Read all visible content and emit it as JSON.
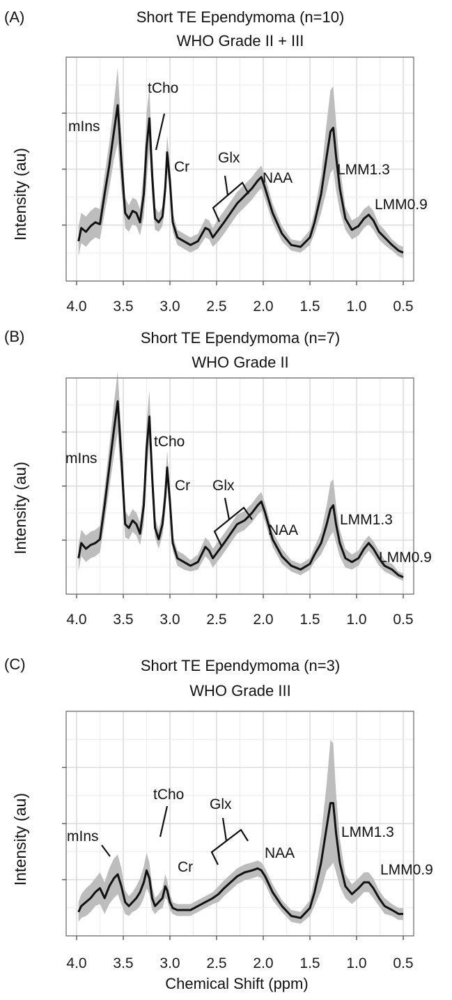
{
  "figure": {
    "xlabel": "Chemical Shift (ppm)"
  },
  "chart_data": [
    {
      "type": "line",
      "panel_label": "(A)",
      "title": "Short TE Ependymoma (n=10)",
      "subtitle": "WHO Grade II + III",
      "xlabel": "",
      "ylabel": "Intensity (au)",
      "xlim": [
        4.0,
        0.5
      ],
      "x_reversed": true,
      "ylim": [
        0,
        1
      ],
      "grid": true,
      "x_ticks": [
        "4.0",
        "3.5",
        "3.0",
        "2.5",
        "2.0",
        "1.5",
        "1.0",
        "0.5"
      ],
      "series": [
        {
          "x": [
            3.98,
            3.95,
            3.9,
            3.85,
            3.8,
            3.75,
            3.7,
            3.65,
            3.6,
            3.56,
            3.52,
            3.48,
            3.44,
            3.4,
            3.36,
            3.32,
            3.28,
            3.25,
            3.22,
            3.19,
            3.16,
            3.12,
            3.08,
            3.05,
            3.03,
            3.0,
            2.97,
            2.92,
            2.85,
            2.78,
            2.7,
            2.62,
            2.58,
            2.54,
            2.48,
            2.42,
            2.35,
            2.28,
            2.2,
            2.12,
            2.06,
            2.02,
            1.98,
            1.9,
            1.8,
            1.7,
            1.6,
            1.5,
            1.45,
            1.38,
            1.32,
            1.28,
            1.25,
            1.22,
            1.18,
            1.12,
            1.05,
            0.98,
            0.92,
            0.87,
            0.82,
            0.76,
            0.7,
            0.62,
            0.55,
            0.5
          ],
          "y": [
            0.1,
            0.17,
            0.15,
            0.18,
            0.2,
            0.19,
            0.35,
            0.5,
            0.68,
            0.82,
            0.52,
            0.25,
            0.22,
            0.26,
            0.25,
            0.2,
            0.35,
            0.6,
            0.75,
            0.45,
            0.22,
            0.2,
            0.23,
            0.38,
            0.57,
            0.42,
            0.2,
            0.12,
            0.1,
            0.08,
            0.1,
            0.17,
            0.16,
            0.12,
            0.16,
            0.2,
            0.25,
            0.3,
            0.34,
            0.38,
            0.42,
            0.44,
            0.38,
            0.25,
            0.14,
            0.08,
            0.07,
            0.12,
            0.2,
            0.35,
            0.55,
            0.68,
            0.7,
            0.55,
            0.38,
            0.22,
            0.16,
            0.18,
            0.22,
            0.24,
            0.21,
            0.15,
            0.12,
            0.08,
            0.05,
            0.04
          ],
          "sd": [
            0.08,
            0.08,
            0.08,
            0.08,
            0.08,
            0.08,
            0.1,
            0.12,
            0.15,
            0.2,
            0.15,
            0.08,
            0.07,
            0.07,
            0.07,
            0.07,
            0.12,
            0.18,
            0.16,
            0.12,
            0.06,
            0.05,
            0.05,
            0.08,
            0.09,
            0.08,
            0.05,
            0.04,
            0.04,
            0.04,
            0.04,
            0.05,
            0.05,
            0.05,
            0.06,
            0.06,
            0.06,
            0.06,
            0.06,
            0.06,
            0.06,
            0.06,
            0.06,
            0.05,
            0.04,
            0.03,
            0.03,
            0.04,
            0.06,
            0.1,
            0.18,
            0.22,
            0.22,
            0.18,
            0.12,
            0.06,
            0.05,
            0.05,
            0.05,
            0.05,
            0.05,
            0.04,
            0.04,
            0.03,
            0.03,
            0.03
          ]
        }
      ],
      "annotations": [
        {
          "text": "mIns"
        },
        {
          "text": "tCho"
        },
        {
          "text": "Cr"
        },
        {
          "text": "Glx"
        },
        {
          "text": "NAA"
        },
        {
          "text": "LMM1.3"
        },
        {
          "text": "LMM0.9"
        }
      ]
    },
    {
      "type": "line",
      "panel_label": "(B)",
      "title": "Short TE Ependymoma (n=7)",
      "subtitle": "WHO Grade II",
      "xlabel": "",
      "ylabel": "Intensity (au)",
      "xlim": [
        4.0,
        0.5
      ],
      "x_reversed": true,
      "ylim": [
        0,
        1
      ],
      "grid": true,
      "x_ticks": [
        "4.0",
        "3.5",
        "3.0",
        "2.5",
        "2.0",
        "1.5",
        "1.0",
        "0.5"
      ],
      "series": [
        {
          "x": [
            3.98,
            3.95,
            3.9,
            3.85,
            3.8,
            3.75,
            3.7,
            3.65,
            3.6,
            3.56,
            3.52,
            3.48,
            3.44,
            3.4,
            3.36,
            3.32,
            3.28,
            3.25,
            3.22,
            3.19,
            3.16,
            3.12,
            3.08,
            3.05,
            3.03,
            3.0,
            2.97,
            2.92,
            2.85,
            2.78,
            2.7,
            2.62,
            2.58,
            2.54,
            2.48,
            2.42,
            2.35,
            2.28,
            2.2,
            2.12,
            2.06,
            2.02,
            1.98,
            1.9,
            1.8,
            1.7,
            1.6,
            1.5,
            1.45,
            1.38,
            1.32,
            1.28,
            1.25,
            1.22,
            1.18,
            1.12,
            1.05,
            0.98,
            0.92,
            0.87,
            0.82,
            0.76,
            0.7,
            0.62,
            0.55,
            0.5
          ],
          "y": [
            0.12,
            0.2,
            0.17,
            0.19,
            0.2,
            0.22,
            0.4,
            0.6,
            0.8,
            0.95,
            0.65,
            0.3,
            0.28,
            0.32,
            0.3,
            0.25,
            0.4,
            0.7,
            0.87,
            0.55,
            0.28,
            0.22,
            0.3,
            0.45,
            0.6,
            0.42,
            0.2,
            0.12,
            0.1,
            0.08,
            0.1,
            0.18,
            0.16,
            0.12,
            0.16,
            0.2,
            0.25,
            0.3,
            0.32,
            0.36,
            0.4,
            0.42,
            0.36,
            0.22,
            0.13,
            0.08,
            0.06,
            0.09,
            0.14,
            0.2,
            0.3,
            0.38,
            0.4,
            0.3,
            0.2,
            0.12,
            0.1,
            0.12,
            0.17,
            0.2,
            0.17,
            0.12,
            0.08,
            0.06,
            0.03,
            0.02
          ],
          "sd": [
            0.07,
            0.07,
            0.07,
            0.07,
            0.07,
            0.07,
            0.09,
            0.11,
            0.14,
            0.16,
            0.13,
            0.07,
            0.06,
            0.06,
            0.06,
            0.06,
            0.1,
            0.14,
            0.14,
            0.1,
            0.05,
            0.05,
            0.06,
            0.08,
            0.09,
            0.07,
            0.04,
            0.04,
            0.04,
            0.03,
            0.04,
            0.05,
            0.05,
            0.05,
            0.05,
            0.05,
            0.05,
            0.05,
            0.05,
            0.05,
            0.05,
            0.05,
            0.05,
            0.04,
            0.04,
            0.03,
            0.03,
            0.03,
            0.04,
            0.06,
            0.1,
            0.14,
            0.14,
            0.1,
            0.07,
            0.05,
            0.04,
            0.04,
            0.04,
            0.04,
            0.04,
            0.04,
            0.03,
            0.03,
            0.02,
            0.02
          ]
        }
      ],
      "annotations": [
        {
          "text": "mIns"
        },
        {
          "text": "tCho"
        },
        {
          "text": "Cr"
        },
        {
          "text": "Glx"
        },
        {
          "text": "NAA"
        },
        {
          "text": "LMM1.3"
        },
        {
          "text": "LMM0.9"
        }
      ]
    },
    {
      "type": "line",
      "panel_label": "(C)",
      "title": "Short TE Ependymoma (n=3)",
      "subtitle": "WHO Grade III",
      "xlabel": "Chemical Shift (ppm)",
      "ylabel": "Intensity (au)",
      "xlim": [
        4.0,
        0.5
      ],
      "x_reversed": true,
      "ylim": [
        0,
        1
      ],
      "grid": true,
      "x_ticks": [
        "4.0",
        "3.5",
        "3.0",
        "2.5",
        "2.0",
        "1.5",
        "1.0",
        "0.5"
      ],
      "series": [
        {
          "x": [
            3.98,
            3.95,
            3.9,
            3.85,
            3.8,
            3.75,
            3.7,
            3.65,
            3.6,
            3.56,
            3.52,
            3.48,
            3.44,
            3.4,
            3.36,
            3.32,
            3.28,
            3.25,
            3.22,
            3.19,
            3.16,
            3.12,
            3.08,
            3.05,
            3.03,
            3.0,
            2.97,
            2.92,
            2.85,
            2.78,
            2.7,
            2.62,
            2.58,
            2.54,
            2.48,
            2.42,
            2.35,
            2.28,
            2.2,
            2.12,
            2.06,
            2.02,
            1.98,
            1.9,
            1.8,
            1.7,
            1.6,
            1.5,
            1.45,
            1.38,
            1.32,
            1.28,
            1.25,
            1.22,
            1.18,
            1.12,
            1.05,
            0.98,
            0.92,
            0.87,
            0.82,
            0.76,
            0.7,
            0.62,
            0.55,
            0.5
          ],
          "y": [
            0.05,
            0.08,
            0.1,
            0.12,
            0.15,
            0.17,
            0.12,
            0.18,
            0.22,
            0.24,
            0.18,
            0.1,
            0.08,
            0.1,
            0.12,
            0.15,
            0.2,
            0.26,
            0.22,
            0.12,
            0.08,
            0.1,
            0.12,
            0.18,
            0.16,
            0.1,
            0.07,
            0.06,
            0.06,
            0.06,
            0.08,
            0.1,
            0.11,
            0.12,
            0.14,
            0.17,
            0.2,
            0.23,
            0.25,
            0.26,
            0.27,
            0.26,
            0.23,
            0.15,
            0.08,
            0.03,
            0.02,
            0.07,
            0.15,
            0.3,
            0.48,
            0.6,
            0.6,
            0.45,
            0.3,
            0.18,
            0.14,
            0.17,
            0.2,
            0.2,
            0.17,
            0.12,
            0.08,
            0.06,
            0.04,
            0.04
          ],
          "sd": [
            0.05,
            0.06,
            0.07,
            0.07,
            0.07,
            0.08,
            0.08,
            0.09,
            0.1,
            0.1,
            0.09,
            0.06,
            0.05,
            0.05,
            0.06,
            0.07,
            0.08,
            0.09,
            0.08,
            0.06,
            0.04,
            0.04,
            0.05,
            0.06,
            0.05,
            0.04,
            0.03,
            0.03,
            0.03,
            0.03,
            0.03,
            0.03,
            0.03,
            0.03,
            0.04,
            0.04,
            0.04,
            0.04,
            0.04,
            0.04,
            0.04,
            0.04,
            0.04,
            0.04,
            0.03,
            0.03,
            0.03,
            0.04,
            0.07,
            0.14,
            0.22,
            0.32,
            0.3,
            0.2,
            0.12,
            0.06,
            0.05,
            0.05,
            0.05,
            0.05,
            0.05,
            0.04,
            0.04,
            0.03,
            0.03,
            0.03
          ]
        }
      ],
      "annotations": [
        {
          "text": "mIns"
        },
        {
          "text": "tCho"
        },
        {
          "text": "Cr"
        },
        {
          "text": "Glx"
        },
        {
          "text": "NAA"
        },
        {
          "text": "LMM1.3"
        },
        {
          "text": "LMM0.9"
        }
      ]
    }
  ]
}
